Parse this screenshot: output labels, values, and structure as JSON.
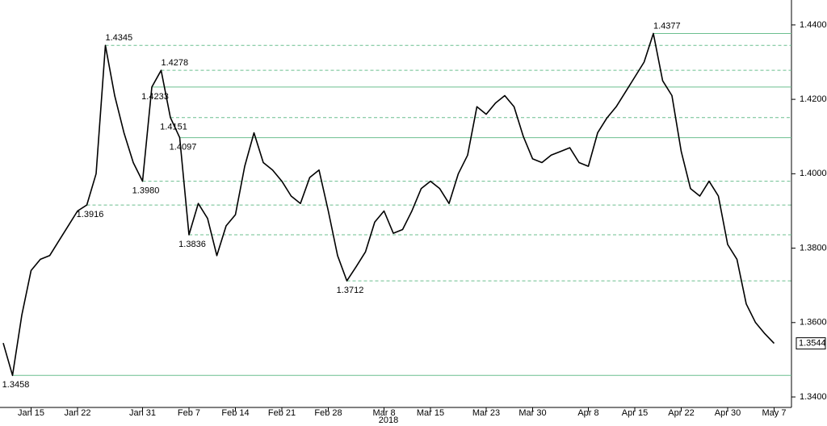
{
  "chart_data": {
    "type": "line",
    "categories": [
      null,
      null,
      null,
      "Jan 15",
      null,
      null,
      null,
      null,
      "Jan 22",
      null,
      null,
      null,
      null,
      null,
      null,
      "Jan 31",
      null,
      null,
      null,
      null,
      "Feb 7",
      null,
      null,
      null,
      null,
      "Feb 14",
      null,
      null,
      null,
      null,
      "Feb 21",
      null,
      null,
      null,
      null,
      "Feb 28",
      null,
      null,
      null,
      null,
      null,
      "Mar 8",
      null,
      null,
      null,
      null,
      "Mar 15",
      null,
      null,
      null,
      null,
      null,
      "Mar 23",
      null,
      null,
      null,
      null,
      "Mar 30",
      null,
      null,
      null,
      null,
      null,
      "Apr 8",
      null,
      null,
      null,
      null,
      "Apr 15",
      null,
      null,
      null,
      null,
      "Apr 22",
      null,
      null,
      null,
      null,
      "Apr 30",
      null,
      null,
      null,
      null,
      "May 7"
    ],
    "x_sublabel": "2018",
    "values": [
      1.3545,
      1.3458,
      1.362,
      1.374,
      1.377,
      1.378,
      1.382,
      1.386,
      1.39,
      1.3916,
      1.4,
      1.4345,
      1.421,
      1.411,
      1.403,
      1.398,
      1.4233,
      1.4278,
      1.4151,
      1.4097,
      1.3836,
      1.392,
      1.388,
      1.378,
      1.386,
      1.389,
      1.402,
      1.411,
      1.403,
      1.401,
      1.398,
      1.394,
      1.392,
      1.399,
      1.401,
      1.39,
      1.378,
      1.3712,
      1.375,
      1.379,
      1.387,
      1.39,
      1.384,
      1.385,
      1.39,
      1.396,
      1.398,
      1.396,
      1.392,
      1.4,
      1.405,
      1.418,
      1.416,
      1.419,
      1.421,
      1.418,
      1.41,
      1.404,
      1.403,
      1.405,
      1.406,
      1.407,
      1.403,
      1.402,
      1.411,
      1.415,
      1.418,
      1.422,
      1.426,
      1.43,
      1.4377,
      1.425,
      1.421,
      1.406,
      1.396,
      1.394,
      1.398,
      1.394,
      1.381,
      1.377,
      1.365,
      1.36,
      1.357,
      1.3544
    ],
    "color": "#000000",
    "ylim": [
      1.3361,
      1.4467
    ],
    "yticks": [
      {
        "value": 1.34,
        "label": "1.3400"
      },
      {
        "value": 1.36,
        "label": "1.3600"
      },
      {
        "value": 1.38,
        "label": "1.3800"
      },
      {
        "value": 1.4,
        "label": "1.4000"
      },
      {
        "value": 1.42,
        "label": "1.4200"
      },
      {
        "value": 1.44,
        "label": "1.4400"
      }
    ],
    "levels": [
      {
        "value": 1.4377,
        "label": "1.4377",
        "dashed": false
      },
      {
        "value": 1.4345,
        "label": "1.4345",
        "dashed": true
      },
      {
        "value": 1.4278,
        "label": "1.4278",
        "dashed": true
      },
      {
        "value": 1.4233,
        "label": "1.4233",
        "dashed": false
      },
      {
        "value": 1.4151,
        "label": "1.4151",
        "dashed": true
      },
      {
        "value": 1.4097,
        "label": "1.4097",
        "dashed": false
      },
      {
        "value": 1.398,
        "label": "1.3980",
        "dashed": true
      },
      {
        "value": 1.3916,
        "label": "1.3916",
        "dashed": true
      },
      {
        "value": 1.3836,
        "label": "1.3836",
        "dashed": true
      },
      {
        "value": 1.3712,
        "label": "1.3712",
        "dashed": true
      },
      {
        "value": 1.3458,
        "label": "1.3458",
        "dashed": false
      }
    ],
    "level_color": "#6cbf8f",
    "last": {
      "value": 1.3544,
      "label": "1.3544"
    }
  }
}
